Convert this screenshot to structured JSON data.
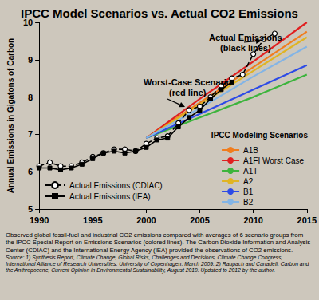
{
  "chart_data": {
    "type": "line",
    "title": "IPCC Model Scenarios vs. Actual CO2 Emissions",
    "y_label": "Annual Emissions in Gigatons of Carbon",
    "xlim": [
      1990,
      2015
    ],
    "xticks": [
      1990,
      1995,
      2000,
      2005,
      2010,
      2015
    ],
    "ylim": [
      5,
      10
    ],
    "yticks": [
      5,
      6,
      7,
      8,
      9,
      10
    ],
    "grid": false,
    "legend": "lower right",
    "legend_title": "IPCC Modeling Scenarios",
    "annotations": [
      "Actual Emissions\n(black lines)",
      "Worst-Case Scenario\n(red line)"
    ],
    "series": [
      {
        "name": "Actual Emissions (CDIAC)",
        "color": "#000000",
        "marker": "circle",
        "line_style": "dashed",
        "x": [
          1990,
          1991,
          1992,
          1993,
          1994,
          1995,
          1996,
          1997,
          1998,
          1999,
          2000,
          2001,
          2002,
          2003,
          2004,
          2005,
          2006,
          2007,
          2008,
          2009,
          2010,
          2011,
          2012
        ],
        "values": [
          6.15,
          6.25,
          6.15,
          6.15,
          6.25,
          6.4,
          6.5,
          6.6,
          6.6,
          6.55,
          6.75,
          6.9,
          6.95,
          7.3,
          7.65,
          7.75,
          8.0,
          8.3,
          8.5,
          8.6,
          9.15,
          9.55,
          9.7
        ]
      },
      {
        "name": "Actual Emissions (IEA)",
        "color": "#000000",
        "marker": "square",
        "line_style": "solid",
        "x": [
          1990,
          1991,
          1992,
          1993,
          1994,
          1995,
          1996,
          1997,
          1998,
          1999,
          2000,
          2001,
          2002,
          2003,
          2004,
          2005,
          2006,
          2007,
          2008
        ],
        "values": [
          6.1,
          6.1,
          6.05,
          6.1,
          6.2,
          6.35,
          6.5,
          6.55,
          6.5,
          6.55,
          6.65,
          6.85,
          6.9,
          7.2,
          7.45,
          7.65,
          7.95,
          8.2,
          8.4
        ]
      },
      {
        "name": "A1B",
        "color": "#f07d1e",
        "marker": "none",
        "line_style": "solid",
        "x": [
          2000,
          2005,
          2010,
          2015
        ],
        "values": [
          6.9,
          7.85,
          8.8,
          9.75
        ]
      },
      {
        "name": "A1FI Worst Case",
        "color": "#e02020",
        "marker": "none",
        "line_style": "solid",
        "x": [
          2000,
          2005,
          2010,
          2015
        ],
        "values": [
          6.9,
          7.95,
          8.95,
          10.0
        ]
      },
      {
        "name": "A1T",
        "color": "#3cb43c",
        "marker": "none",
        "line_style": "solid",
        "x": [
          2000,
          2005,
          2010,
          2015
        ],
        "values": [
          6.9,
          7.45,
          8.0,
          8.6
        ]
      },
      {
        "name": "A2",
        "color": "#e0b423",
        "marker": "none",
        "line_style": "solid",
        "x": [
          2000,
          2005,
          2010,
          2015
        ],
        "values": [
          6.9,
          7.8,
          8.7,
          9.6
        ]
      },
      {
        "name": "B1",
        "color": "#2d4be6",
        "marker": "none",
        "line_style": "solid",
        "x": [
          2000,
          2005,
          2010,
          2015
        ],
        "values": [
          6.9,
          7.55,
          8.2,
          8.85
        ]
      },
      {
        "name": "B2",
        "color": "#82b4e6",
        "marker": "none",
        "line_style": "solid",
        "x": [
          2000,
          2005,
          2010,
          2015
        ],
        "values": [
          6.9,
          7.7,
          8.55,
          9.35
        ]
      }
    ],
    "caption": "Observed global fossil-fuel and industrial CO2 emissions compared with averages of 6 scenario groups from the IPCC Special Report on Emissions Scenarios (colored lines). The Carbon Dioxide Information and Analysis Center (CDIAC) and the International Energy Agency (IEA) provided the observations of CO2 emissions.",
    "source": "Source: 1) Synthesis Report, Climate Change, Global Risks, Challenges and Decisions, Climate Change Congress, International Alliance of Research Universities, University of Copenhagen, March 2009. 2) Raupach and Canadell, Carbon and the Anthropocene, Current Opinion in Environmental Sustainability, August 2010. Updated to 2012 by the author."
  }
}
